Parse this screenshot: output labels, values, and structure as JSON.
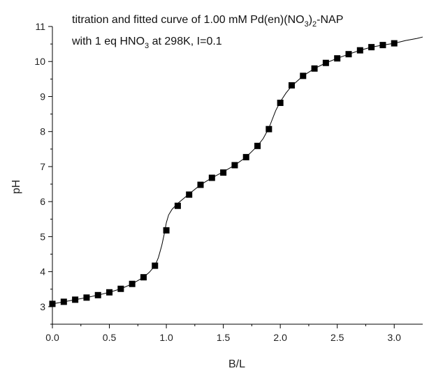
{
  "chart_data": {
    "type": "scatter",
    "xlabel": "B/L",
    "ylabel": "pH",
    "xlim": [
      0.0,
      3.25
    ],
    "ylim": [
      2.5,
      11.0
    ],
    "x_ticks": [
      "0.0",
      "0.5",
      "1.0",
      "1.5",
      "2.0",
      "2.5",
      "3.0"
    ],
    "y_ticks": [
      "3",
      "4",
      "5",
      "6",
      "7",
      "8",
      "9",
      "10",
      "11"
    ],
    "grid": false,
    "annotation": {
      "line1": {
        "prefix": "titration and fitted curve of 1.00 mM Pd(en)(NO",
        "sub": "3",
        "suffix": ")",
        "sub2": "2",
        "suffix2": "-NAP"
      },
      "line2": {
        "prefix": "with 1 eq HNO",
        "sub": "3",
        "suffix": " at 298K, I=0.1"
      }
    },
    "series": [
      {
        "type": "scatter",
        "x": [
          0.0,
          0.1,
          0.2,
          0.3,
          0.4,
          0.5,
          0.6,
          0.7,
          0.8,
          0.9,
          1.0,
          1.1,
          1.2,
          1.3,
          1.4,
          1.5,
          1.6,
          1.7,
          1.8,
          1.9,
          2.0,
          2.1,
          2.2,
          2.3,
          2.4,
          2.5,
          2.6,
          2.7,
          2.8,
          2.9,
          3.0
        ],
        "y": [
          3.08,
          3.14,
          3.2,
          3.26,
          3.33,
          3.41,
          3.51,
          3.65,
          3.84,
          4.17,
          5.18,
          5.88,
          6.2,
          6.48,
          6.68,
          6.83,
          7.04,
          7.27,
          7.59,
          8.07,
          8.82,
          9.32,
          9.59,
          9.8,
          9.96,
          10.09,
          10.21,
          10.32,
          10.41,
          10.47,
          10.52
        ]
      },
      {
        "type": "line",
        "x": [
          0.0,
          0.1,
          0.2,
          0.3,
          0.4,
          0.5,
          0.6,
          0.7,
          0.8,
          0.85,
          0.9,
          0.93,
          0.96,
          0.98,
          1.0,
          1.02,
          1.05,
          1.1,
          1.2,
          1.3,
          1.4,
          1.5,
          1.6,
          1.7,
          1.8,
          1.85,
          1.9,
          1.93,
          1.96,
          2.0,
          2.05,
          2.1,
          2.2,
          2.3,
          2.4,
          2.5,
          2.6,
          2.7,
          2.8,
          2.9,
          3.0,
          3.1,
          3.2,
          3.25
        ],
        "y": [
          3.08,
          3.14,
          3.2,
          3.26,
          3.33,
          3.41,
          3.51,
          3.65,
          3.84,
          3.98,
          4.17,
          4.4,
          4.75,
          5.05,
          5.4,
          5.62,
          5.78,
          5.95,
          6.22,
          6.48,
          6.68,
          6.85,
          7.04,
          7.27,
          7.59,
          7.8,
          8.1,
          8.35,
          8.6,
          8.85,
          9.1,
          9.3,
          9.59,
          9.8,
          9.96,
          10.09,
          10.21,
          10.32,
          10.41,
          10.47,
          10.52,
          10.6,
          10.66,
          10.7
        ]
      }
    ]
  }
}
